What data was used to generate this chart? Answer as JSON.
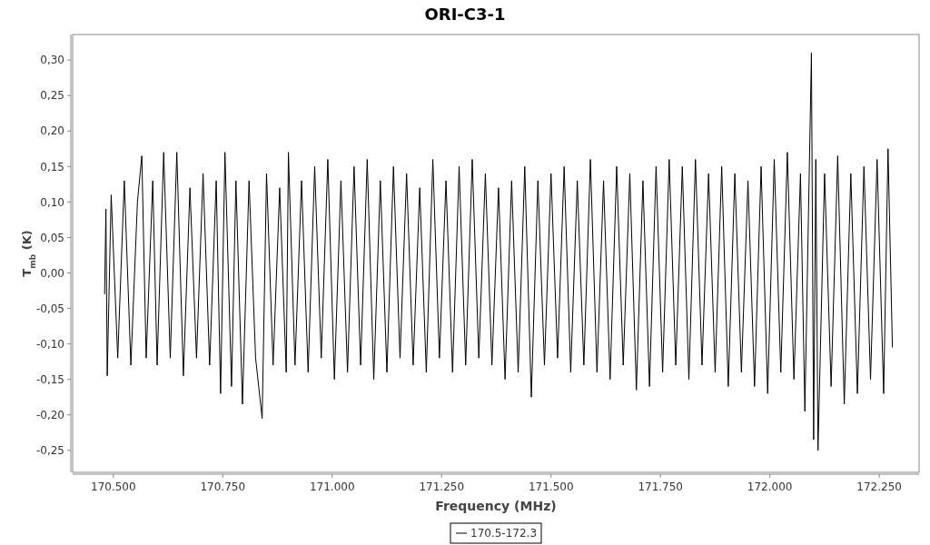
{
  "chart_data": {
    "type": "line",
    "title": "ORI-C3-1",
    "xlabel": "Frequency (MHz)",
    "ylabel": "T$_{mb}$ (K)",
    "xlim": [
      170407,
      172341
    ],
    "xticks": [
      {
        "value": 170500,
        "label": "170.500"
      },
      {
        "value": 170750,
        "label": "170.750"
      },
      {
        "value": 171000,
        "label": "171.000"
      },
      {
        "value": 171250,
        "label": "171.250"
      },
      {
        "value": 171500,
        "label": "171.500"
      },
      {
        "value": 171750,
        "label": "171.750"
      },
      {
        "value": 172000,
        "label": "172.000"
      },
      {
        "value": 172250,
        "label": "172.250"
      }
    ],
    "ylim": [
      -0.281,
      0.336
    ],
    "yticks": [
      {
        "value": -0.25,
        "label": "-0,25"
      },
      {
        "value": -0.2,
        "label": "-0,20"
      },
      {
        "value": -0.15,
        "label": "-0,15"
      },
      {
        "value": -0.1,
        "label": "-0,10"
      },
      {
        "value": -0.05,
        "label": "-0,05"
      },
      {
        "value": 0,
        "label": "0,00"
      },
      {
        "value": 0.05,
        "label": "0,05"
      },
      {
        "value": 0.1,
        "label": "0,10"
      },
      {
        "value": 0.15,
        "label": "0,15"
      },
      {
        "value": 0.2,
        "label": "0,20"
      },
      {
        "value": 0.25,
        "label": "0,25"
      },
      {
        "value": 0.3,
        "label": "0,30"
      }
    ],
    "grid": false,
    "legend": "bottom",
    "marker": "none",
    "line_style": "solid",
    "series": [
      {
        "name": "170.5-172.3",
        "color": "#000000",
        "x": [
          170480,
          170483,
          170486,
          170495,
          170510,
          170525,
          170540,
          170555,
          170565,
          170575,
          170590,
          170600,
          170615,
          170630,
          170645,
          170660,
          170675,
          170690,
          170705,
          170720,
          170735,
          170745,
          170755,
          170770,
          170780,
          170795,
          170810,
          170825,
          170840,
          170850,
          170865,
          170880,
          170895,
          170900,
          170915,
          170930,
          170945,
          170960,
          170975,
          170990,
          171005,
          171020,
          171035,
          171050,
          171065,
          171080,
          171095,
          171110,
          171125,
          171140,
          171155,
          171170,
          171185,
          171200,
          171215,
          171230,
          171245,
          171260,
          171275,
          171290,
          171305,
          171320,
          171335,
          171350,
          171365,
          171380,
          171395,
          171410,
          171425,
          171440,
          171455,
          171470,
          171485,
          171500,
          171515,
          171530,
          171545,
          171560,
          171575,
          171590,
          171605,
          171620,
          171635,
          171650,
          171665,
          171680,
          171695,
          171710,
          171725,
          171740,
          171755,
          171770,
          171785,
          171800,
          171815,
          171830,
          171845,
          171860,
          171875,
          171890,
          171905,
          171920,
          171935,
          171950,
          171965,
          171980,
          171995,
          172010,
          172025,
          172040,
          172055,
          172070,
          172080,
          172095,
          172100,
          172105,
          172110,
          172125,
          172140,
          172155,
          172170,
          172185,
          172200,
          172215,
          172230,
          172245,
          172260,
          172270,
          172280
        ],
        "values": [
          -0.03,
          0.09,
          -0.145,
          0.11,
          -0.12,
          0.13,
          -0.13,
          0.1,
          0.165,
          -0.12,
          0.13,
          -0.13,
          0.17,
          -0.12,
          0.17,
          -0.145,
          0.12,
          -0.12,
          0.14,
          -0.13,
          0.13,
          -0.17,
          0.17,
          -0.16,
          0.13,
          -0.185,
          0.13,
          -0.12,
          -0.205,
          0.14,
          -0.13,
          0.12,
          -0.14,
          0.17,
          -0.13,
          0.13,
          -0.14,
          0.15,
          -0.12,
          0.16,
          -0.15,
          0.13,
          -0.14,
          0.15,
          -0.13,
          0.16,
          -0.15,
          0.13,
          -0.14,
          0.15,
          -0.12,
          0.14,
          -0.13,
          0.12,
          -0.14,
          0.16,
          -0.12,
          0.13,
          -0.14,
          0.15,
          -0.13,
          0.16,
          -0.12,
          0.14,
          -0.13,
          0.12,
          -0.15,
          0.13,
          -0.14,
          0.15,
          -0.175,
          0.13,
          -0.13,
          0.14,
          -0.12,
          0.15,
          -0.14,
          0.13,
          -0.13,
          0.16,
          -0.14,
          0.13,
          -0.15,
          0.15,
          -0.13,
          0.14,
          -0.165,
          0.13,
          -0.16,
          0.15,
          -0.14,
          0.16,
          -0.13,
          0.15,
          -0.15,
          0.16,
          -0.13,
          0.14,
          -0.14,
          0.15,
          -0.16,
          0.14,
          -0.14,
          0.13,
          -0.16,
          0.15,
          -0.17,
          0.16,
          -0.14,
          0.17,
          -0.15,
          0.14,
          -0.195,
          0.31,
          -0.235,
          0.16,
          -0.25,
          0.14,
          -0.16,
          0.165,
          -0.185,
          0.14,
          -0.17,
          0.15,
          -0.15,
          0.16,
          -0.17,
          0.175,
          -0.105
        ]
      }
    ]
  }
}
